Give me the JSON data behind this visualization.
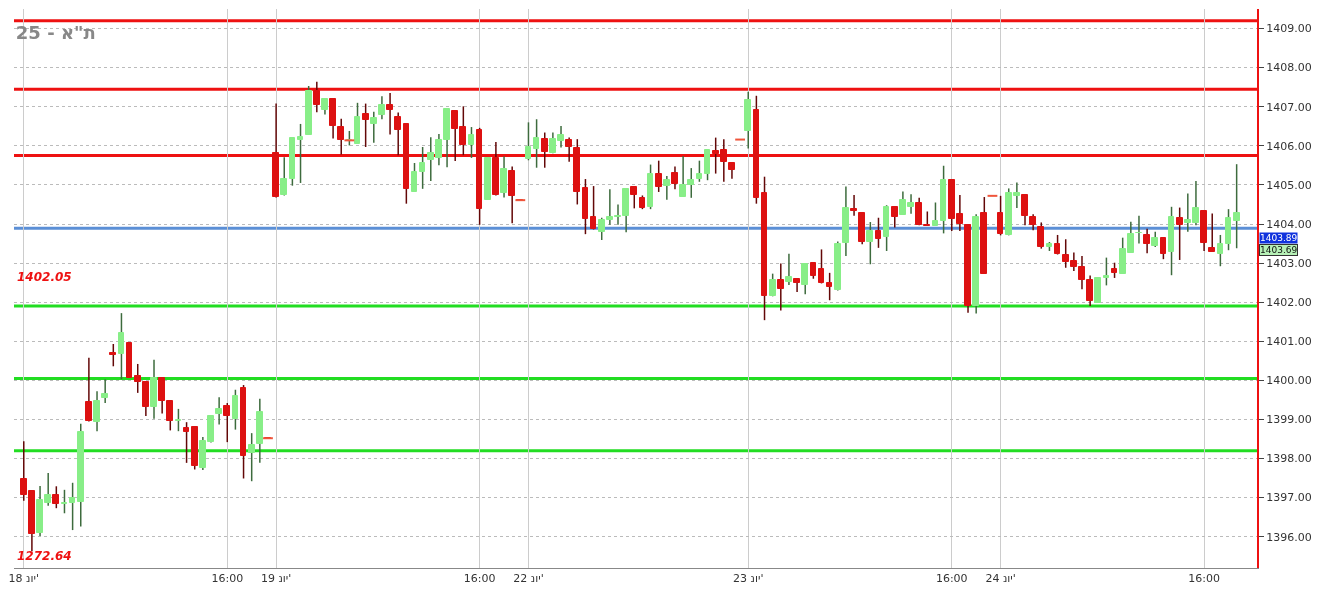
{
  "chart_data": {
    "type": "candlestick",
    "title": "ת\"א - 25",
    "categories": [
      "18 יונ'",
      null,
      null,
      null,
      null,
      null,
      null,
      null,
      null,
      null,
      null,
      null,
      null,
      null,
      null,
      null,
      null,
      null,
      null,
      null,
      null,
      null,
      null,
      null,
      null,
      "16:00",
      null,
      null,
      null,
      null,
      null,
      "19 יונ'",
      null,
      null,
      null,
      null,
      null,
      null,
      null,
      null,
      null,
      null,
      null,
      null,
      null,
      null,
      null,
      null,
      null,
      null,
      null,
      null,
      null,
      null,
      null,
      null,
      "16:00",
      null,
      null,
      null,
      null,
      null,
      "22 יונ'",
      null,
      null,
      null,
      null,
      null,
      null,
      null,
      null,
      null,
      null,
      null,
      null,
      null,
      null,
      null,
      null,
      null,
      null,
      null,
      null,
      null,
      null,
      null,
      null,
      null,
      null,
      "23 יונ'",
      null,
      null,
      null,
      null,
      null,
      null,
      null,
      null,
      null,
      null,
      null,
      null,
      null,
      null,
      null,
      null,
      null,
      null,
      null,
      null,
      null,
      null,
      null,
      null,
      "16:00",
      null,
      null,
      null,
      null,
      null,
      "24 יונ'",
      null,
      null,
      null,
      null,
      null,
      null,
      null,
      null,
      null,
      null,
      null,
      null,
      null,
      null,
      null,
      null,
      null,
      null,
      null,
      null,
      null,
      null,
      null,
      null,
      "16:00",
      null,
      null,
      null,
      null
    ],
    "ohlc": [
      [
        1397.47,
        1398.44,
        1396.92,
        1397.07
      ],
      [
        1397.17,
        1397.17,
        1395.63,
        1396.06
      ],
      [
        1396.1,
        1397.3,
        1396.02,
        1396.93
      ],
      [
        1396.86,
        1397.63,
        1396.79,
        1397.08
      ],
      [
        1397.07,
        1397.29,
        1396.73,
        1396.83
      ],
      [
        1396.85,
        1397.2,
        1396.6,
        1396.86
      ],
      [
        1396.86,
        1397.38,
        1396.17,
        1396.98
      ],
      [
        1396.88,
        1398.89,
        1396.26,
        1398.68
      ],
      [
        1399.45,
        1400.58,
        1398.95,
        1398.95
      ],
      [
        1398.93,
        1399.72,
        1398.7,
        1399.48
      ],
      [
        1399.56,
        1400.03,
        1399.42,
        1399.64
      ],
      [
        1400.71,
        1400.93,
        1400.36,
        1400.65
      ],
      [
        1400.68,
        1401.72,
        1400.03,
        1401.21
      ],
      [
        1400.96,
        1400.96,
        1400.06,
        1400.06
      ],
      [
        1400.11,
        1400.42,
        1399.68,
        1399.97
      ],
      [
        1399.97,
        1399.97,
        1399.09,
        1399.33
      ],
      [
        1399.33,
        1400.53,
        1399.02,
        1400.05
      ],
      [
        1400.05,
        1400.05,
        1399.15,
        1399.48
      ],
      [
        1399.47,
        1399.47,
        1398.72,
        1398.95
      ],
      [
        1398.97,
        1399.27,
        1398.7,
        1398.98
      ],
      [
        1398.79,
        1398.93,
        1397.89,
        1398.68
      ],
      [
        1398.81,
        1398.81,
        1397.72,
        1397.81
      ],
      [
        1397.77,
        1398.55,
        1397.71,
        1398.45
      ],
      [
        1398.43,
        1399.1,
        1398.41,
        1399.1
      ],
      [
        1399.15,
        1399.57,
        1398.87,
        1399.28
      ],
      [
        1399.34,
        1399.42,
        1398.42,
        1399.08
      ],
      [
        1399.02,
        1399.76,
        1398.74,
        1399.61
      ],
      [
        1399.81,
        1399.88,
        1397.49,
        1398.07
      ],
      [
        1398.15,
        1398.65,
        1397.42,
        1398.34
      ],
      [
        1398.37,
        1399.53,
        1397.89,
        1399.2
      ],
      [
        1398.52,
        1398.52,
        1398.52,
        1398.52
      ],
      [
        1405.82,
        1407.08,
        1404.68,
        1404.68
      ],
      [
        1404.73,
        1405.71,
        1404.73,
        1405.14
      ],
      [
        1405.15,
        1406.21,
        1404.98,
        1406.21
      ],
      [
        1406.15,
        1406.56,
        1405.05,
        1406.23
      ],
      [
        1406.28,
        1407.53,
        1406.28,
        1407.4
      ],
      [
        1407.4,
        1407.64,
        1406.86,
        1407.05
      ],
      [
        1406.92,
        1407.21,
        1406.8,
        1407.21
      ],
      [
        1407.21,
        1407.21,
        1406.19,
        1406.5
      ],
      [
        1406.48,
        1406.69,
        1405.78,
        1406.14
      ],
      [
        1406.14,
        1406.38,
        1406.01,
        1406.14
      ],
      [
        1406.05,
        1407.1,
        1406.05,
        1406.74
      ],
      [
        1406.81,
        1407.08,
        1405.97,
        1406.65
      ],
      [
        1406.57,
        1406.87,
        1406.08,
        1406.71
      ],
      [
        1406.8,
        1407.27,
        1406.68,
        1407.04
      ],
      [
        1407.04,
        1407.35,
        1406.29,
        1406.92
      ],
      [
        1406.74,
        1406.85,
        1405.76,
        1406.4
      ],
      [
        1406.57,
        1406.57,
        1404.52,
        1404.9
      ],
      [
        1404.82,
        1405.56,
        1404.82,
        1405.34
      ],
      [
        1405.34,
        1405.97,
        1404.9,
        1405.56
      ],
      [
        1405.63,
        1406.22,
        1405.1,
        1405.82
      ],
      [
        1405.69,
        1406.3,
        1405.5,
        1406.15
      ],
      [
        1406.15,
        1406.95,
        1405.45,
        1406.95
      ],
      [
        1406.9,
        1406.9,
        1405.61,
        1406.44
      ],
      [
        1406.48,
        1407.01,
        1405.76,
        1406.02
      ],
      [
        1406.02,
        1406.48,
        1405.69,
        1406.27
      ],
      [
        1406.4,
        1406.46,
        1403.98,
        1404.38
      ],
      [
        1404.62,
        1405.7,
        1404.62,
        1405.7
      ],
      [
        1405.7,
        1406.1,
        1404.73,
        1404.73
      ],
      [
        1404.8,
        1405.73,
        1404.68,
        1405.4
      ],
      [
        1405.35,
        1405.47,
        1404.02,
        1404.72
      ],
      [
        1404.61,
        1404.61,
        1404.61,
        1404.61
      ],
      [
        1405.67,
        1406.6,
        1405.63,
        1405.96
      ],
      [
        1405.91,
        1406.68,
        1405.44,
        1406.19
      ],
      [
        1406.17,
        1406.34,
        1405.44,
        1405.85
      ],
      [
        1405.81,
        1406.34,
        1405.81,
        1406.17
      ],
      [
        1406.13,
        1406.51,
        1405.96,
        1406.28
      ],
      [
        1406.15,
        1406.21,
        1405.59,
        1405.96
      ],
      [
        1405.94,
        1406.17,
        1404.5,
        1404.82
      ],
      [
        1404.91,
        1405.15,
        1403.74,
        1404.14
      ],
      [
        1404.17,
        1404.97,
        1403.86,
        1403.86
      ],
      [
        1403.79,
        1404.16,
        1403.59,
        1404.1
      ],
      [
        1404.09,
        1404.89,
        1403.98,
        1404.17
      ],
      [
        1404.18,
        1404.5,
        1403.98,
        1404.21
      ],
      [
        1404.2,
        1404.9,
        1403.79,
        1404.9
      ],
      [
        1404.95,
        1404.95,
        1404.4,
        1404.74
      ],
      [
        1404.67,
        1404.73,
        1404.38,
        1404.42
      ],
      [
        1404.44,
        1405.52,
        1404.38,
        1405.28
      ],
      [
        1405.28,
        1405.62,
        1404.82,
        1404.95
      ],
      [
        1404.96,
        1405.23,
        1404.62,
        1405.12
      ],
      [
        1405.31,
        1405.47,
        1404.89,
        1405.02
      ],
      [
        1404.7,
        1405.74,
        1404.7,
        1405.0
      ],
      [
        1405.01,
        1405.43,
        1404.67,
        1405.12
      ],
      [
        1405.16,
        1405.62,
        1405.08,
        1405.29
      ],
      [
        1405.27,
        1405.89,
        1405.12,
        1405.89
      ],
      [
        1405.87,
        1406.21,
        1405.29,
        1405.79
      ],
      [
        1405.89,
        1406.17,
        1405.08,
        1405.59
      ],
      [
        1405.57,
        1405.57,
        1405.16,
        1405.38
      ],
      [
        1406.16,
        1406.16,
        1406.16,
        1406.16
      ],
      [
        1406.37,
        1407.38,
        1405.93,
        1407.18
      ],
      [
        1406.91,
        1407.28,
        1404.52,
        1404.66
      ],
      [
        1404.8,
        1405.21,
        1401.54,
        1402.15
      ],
      [
        1402.15,
        1402.73,
        1402.15,
        1402.57
      ],
      [
        1402.56,
        1402.99,
        1401.79,
        1402.33
      ],
      [
        1402.52,
        1403.24,
        1402.44,
        1402.64
      ],
      [
        1402.59,
        1402.6,
        1402.26,
        1402.5
      ],
      [
        1402.44,
        1402.97,
        1402.2,
        1402.97
      ],
      [
        1402.99,
        1402.99,
        1402.6,
        1402.67
      ],
      [
        1402.85,
        1403.35,
        1402.48,
        1402.48
      ],
      [
        1402.48,
        1402.75,
        1402.05,
        1402.39
      ],
      [
        1402.3,
        1403.55,
        1402.3,
        1403.5
      ],
      [
        1403.52,
        1404.96,
        1403.18,
        1404.42
      ],
      [
        1404.38,
        1404.74,
        1404.21,
        1404.32
      ],
      [
        1404.29,
        1404.29,
        1403.48,
        1403.54
      ],
      [
        1403.55,
        1404.05,
        1402.97,
        1403.82
      ],
      [
        1403.82,
        1404.16,
        1403.39,
        1403.62
      ],
      [
        1403.67,
        1404.48,
        1403.31,
        1404.44
      ],
      [
        1404.43,
        1404.43,
        1403.91,
        1404.18
      ],
      [
        1404.23,
        1404.83,
        1404.23,
        1404.61
      ],
      [
        1404.44,
        1404.76,
        1404.26,
        1404.55
      ],
      [
        1404.55,
        1404.67,
        1403.97,
        1403.97
      ],
      [
        1403.98,
        1404.32,
        1403.95,
        1403.95
      ],
      [
        1403.95,
        1404.55,
        1403.95,
        1404.08
      ],
      [
        1404.08,
        1405.49,
        1403.76,
        1405.12
      ],
      [
        1405.12,
        1405.12,
        1403.82,
        1404.12
      ],
      [
        1404.25,
        1404.74,
        1403.82,
        1403.99
      ],
      [
        1403.97,
        1403.97,
        1401.73,
        1401.9
      ],
      [
        1401.9,
        1404.25,
        1401.71,
        1404.18
      ],
      [
        1404.27,
        1404.69,
        1402.73,
        1402.73
      ],
      [
        1404.72,
        1404.72,
        1404.72,
        1404.72
      ],
      [
        1404.27,
        1404.72,
        1403.71,
        1403.75
      ],
      [
        1403.71,
        1404.91,
        1403.71,
        1404.79
      ],
      [
        1404.72,
        1405.06,
        1404.41,
        1404.79
      ],
      [
        1404.74,
        1404.74,
        1403.97,
        1404.21
      ],
      [
        1404.19,
        1404.25,
        1403.84,
        1403.98
      ],
      [
        1403.93,
        1404.04,
        1403.37,
        1403.41
      ],
      [
        1403.42,
        1403.54,
        1403.31,
        1403.5
      ],
      [
        1403.5,
        1403.72,
        1403.22,
        1403.22
      ],
      [
        1403.21,
        1403.61,
        1402.88,
        1403.03
      ],
      [
        1403.05,
        1403.27,
        1402.8,
        1402.91
      ],
      [
        1402.91,
        1403.18,
        1402.33,
        1402.58
      ],
      [
        1402.58,
        1402.68,
        1401.9,
        1402.04
      ],
      [
        1401.98,
        1402.63,
        1401.98,
        1402.63
      ],
      [
        1402.61,
        1403.14,
        1402.43,
        1402.68
      ],
      [
        1402.85,
        1403.01,
        1402.62,
        1402.74
      ],
      [
        1402.73,
        1403.65,
        1402.73,
        1403.37
      ],
      [
        1403.27,
        1404.06,
        1403.27,
        1403.75
      ],
      [
        1403.77,
        1404.21,
        1403.5,
        1403.78
      ],
      [
        1403.71,
        1403.88,
        1403.25,
        1403.48
      ],
      [
        1403.45,
        1403.8,
        1403.41,
        1403.65
      ],
      [
        1403.65,
        1403.65,
        1403.1,
        1403.22
      ],
      [
        1403.29,
        1404.44,
        1402.69,
        1404.19
      ],
      [
        1404.15,
        1404.42,
        1403.08,
        1403.97
      ],
      [
        1404.02,
        1404.78,
        1403.8,
        1404.09
      ],
      [
        1404.02,
        1405.1,
        1403.97,
        1404.42
      ],
      [
        1404.33,
        1404.33,
        1403.31,
        1403.52
      ],
      [
        1403.38,
        1404.27,
        1403.29,
        1403.29
      ],
      [
        1403.24,
        1403.72,
        1402.92,
        1403.5
      ],
      [
        1403.5,
        1404.38,
        1403.33,
        1404.15
      ],
      [
        1404.08,
        1405.53,
        1403.38,
        1404.29
      ]
    ],
    "colors": [
      "#dd1111",
      "#dd1111",
      "#88ee88",
      "#88ee88",
      "#dd1111",
      "#88ee88",
      "#88ee88",
      "#88ee88",
      "#dd1111",
      "#88ee88",
      "#88ee88",
      "#dd1111",
      "#88ee88",
      "#dd1111",
      "#dd1111",
      "#dd1111",
      "#88ee88",
      "#dd1111",
      "#dd1111",
      "#88ee88",
      "#dd1111",
      "#dd1111",
      "#88ee88",
      "#88ee88",
      "#88ee88",
      "#dd1111",
      "#88ee88",
      "#dd1111",
      "#88ee88",
      "#88ee88",
      "#dd1111",
      "#dd1111",
      "#88ee88",
      "#88ee88",
      "#88ee88",
      "#88ee88",
      "#dd1111",
      "#88ee88",
      "#dd1111",
      "#dd1111",
      "#88ee88",
      "#88ee88",
      "#dd1111",
      "#88ee88",
      "#88ee88",
      "#dd1111",
      "#dd1111",
      "#dd1111",
      "#88ee88",
      "#88ee88",
      "#88ee88",
      "#88ee88",
      "#88ee88",
      "#dd1111",
      "#dd1111",
      "#88ee88",
      "#dd1111",
      "#88ee88",
      "#dd1111",
      "#88ee88",
      "#dd1111",
      "#dd1111",
      "#88ee88",
      "#88ee88",
      "#dd1111",
      "#88ee88",
      "#88ee88",
      "#dd1111",
      "#dd1111",
      "#dd1111",
      "#dd1111",
      "#88ee88",
      "#88ee88",
      "#88ee88",
      "#88ee88",
      "#dd1111",
      "#dd1111",
      "#88ee88",
      "#dd1111",
      "#88ee88",
      "#dd1111",
      "#88ee88",
      "#88ee88",
      "#88ee88",
      "#88ee88",
      "#dd1111",
      "#dd1111",
      "#dd1111",
      "#dd1111",
      "#88ee88",
      "#dd1111",
      "#dd1111",
      "#88ee88",
      "#dd1111",
      "#88ee88",
      "#dd1111",
      "#88ee88",
      "#dd1111",
      "#dd1111",
      "#dd1111",
      "#88ee88",
      "#88ee88",
      "#dd1111",
      "#dd1111",
      "#88ee88",
      "#dd1111",
      "#88ee88",
      "#dd1111",
      "#88ee88",
      "#88ee88",
      "#dd1111",
      "#dd1111",
      "#88ee88",
      "#88ee88",
      "#dd1111",
      "#dd1111",
      "#dd1111",
      "#88ee88",
      "#dd1111",
      "#dd1111",
      "#dd1111",
      "#88ee88",
      "#88ee88",
      "#dd1111",
      "#dd1111",
      "#dd1111",
      "#88ee88",
      "#dd1111",
      "#dd1111",
      "#dd1111",
      "#dd1111",
      "#dd1111",
      "#88ee88",
      "#88ee88",
      "#dd1111",
      "#88ee88",
      "#88ee88",
      "#88ee88",
      "#dd1111",
      "#88ee88",
      "#dd1111",
      "#88ee88",
      "#dd1111",
      "#88ee88",
      "#88ee88",
      "#dd1111",
      "#dd1111",
      "#88ee88",
      "#88ee88",
      "#88ee88"
    ],
    "ylim": [
      1395.2,
      1409.5
    ],
    "yticks": [
      {
        "value": 1396,
        "label": "1396.00"
      },
      {
        "value": 1397,
        "label": "1397.00"
      },
      {
        "value": 1398,
        "label": "1398.00"
      },
      {
        "value": 1399,
        "label": "1399.00"
      },
      {
        "value": 1400,
        "label": "1400.00"
      },
      {
        "value": 1401,
        "label": "1401.00"
      },
      {
        "value": 1402,
        "label": "1402.00"
      },
      {
        "value": 1403,
        "label": "1403.00"
      },
      {
        "value": 1404,
        "label": "1404.00"
      },
      {
        "value": 1405,
        "label": "1405.00"
      },
      {
        "value": 1406,
        "label": "1406.00"
      },
      {
        "value": 1407,
        "label": "1407.00"
      },
      {
        "value": 1408,
        "label": "1408.00"
      },
      {
        "value": 1409,
        "label": "1409.00"
      }
    ],
    "ref_lines": [
      {
        "axis": "y",
        "value": 1409.2,
        "color": "#ee1111"
      },
      {
        "axis": "y",
        "value": 1407.45,
        "color": "#ee1111"
      },
      {
        "axis": "y",
        "value": 1405.75,
        "color": "#ee1111"
      },
      {
        "axis": "y",
        "value": 1403.89,
        "label": "1403.89",
        "color": "#5b8fd6"
      },
      {
        "axis": "y",
        "value": 1401.9,
        "color": "#22dd22"
      },
      {
        "axis": "y",
        "value": 1400.05,
        "color": "#22dd22"
      },
      {
        "axis": "y",
        "value": 1398.2,
        "color": "#22dd22"
      }
    ],
    "annotations": [
      "1402.05",
      "1272.64",
      "1403.69"
    ],
    "grid": true
  }
}
